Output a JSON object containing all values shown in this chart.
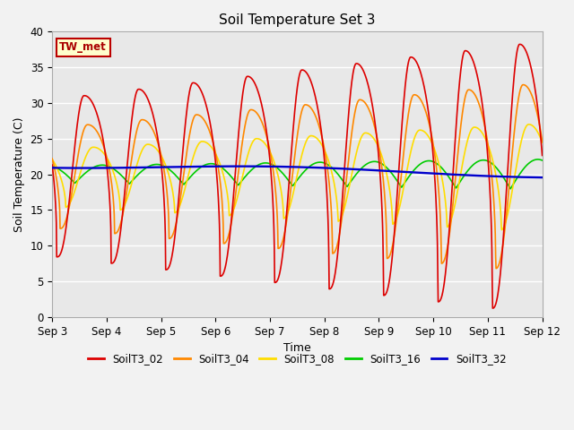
{
  "title": "Soil Temperature Set 3",
  "xlabel": "Time",
  "ylabel": "Soil Temperature (C)",
  "ylim": [
    0,
    40
  ],
  "yticks": [
    0,
    5,
    10,
    15,
    20,
    25,
    30,
    35,
    40
  ],
  "xtick_labels": [
    "Sep 3",
    "Sep 4",
    "Sep 5",
    "Sep 6",
    "Sep 7",
    "Sep 8",
    "Sep 9",
    "Sep 10",
    "Sep 11",
    "Sep 12"
  ],
  "series_colors": {
    "SoilT3_02": "#DD0000",
    "SoilT3_04": "#FF8800",
    "SoilT3_08": "#FFDD00",
    "SoilT3_16": "#00CC00",
    "SoilT3_32": "#0000CC"
  },
  "annotation_text": "TW_met",
  "annotation_bg": "#FFFFCC",
  "annotation_border": "#BB0000",
  "bg_color": "#E8E8E8",
  "grid_color": "#FFFFFF",
  "linewidth": 1.2
}
